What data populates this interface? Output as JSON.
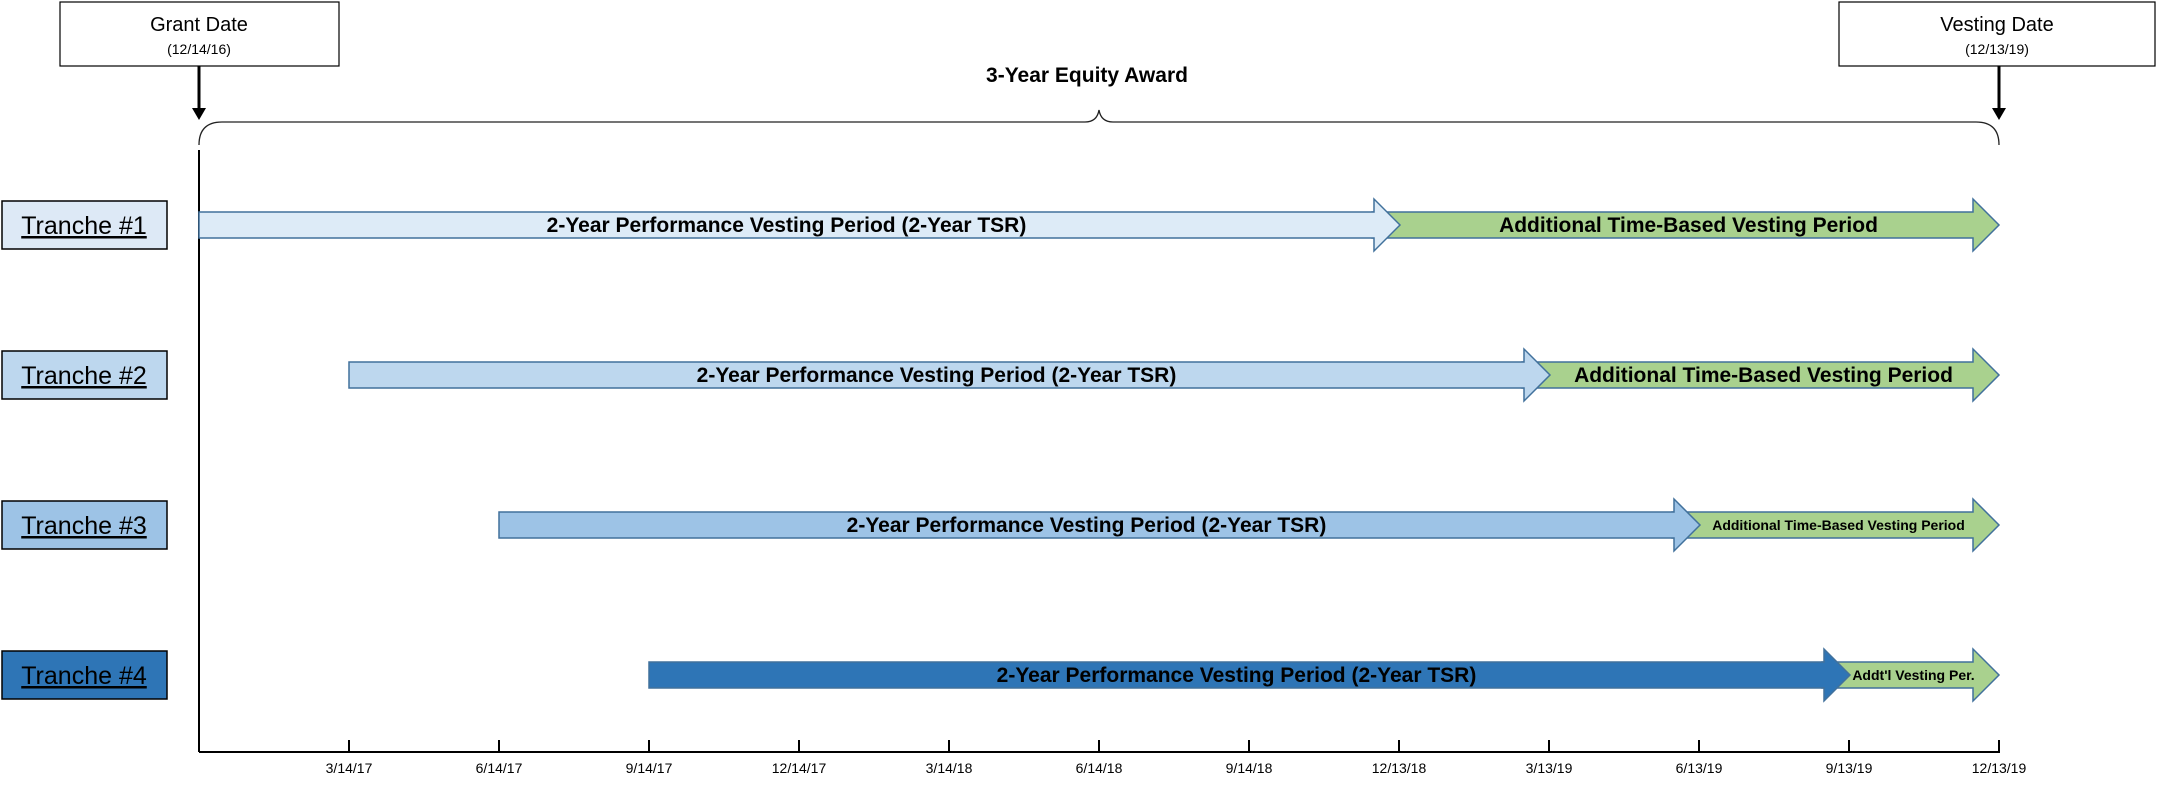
{
  "grant_box": {
    "title": "Grant Date",
    "date": "(12/14/16)"
  },
  "vesting_box": {
    "title": "Vesting Date",
    "date": "(12/13/19)"
  },
  "award_label": "3-Year Equity Award",
  "tranches": [
    {
      "label": "Tranche #1",
      "label_fill": "#dde9f6",
      "perf_text": "2-Year Performance Vesting Period (2-Year TSR)",
      "perf_color": "#ddebf7",
      "time_text": "Additional Time-Based Vesting Period",
      "time_text_size": "large"
    },
    {
      "label": "Tranche #2",
      "label_fill": "#bdd7ee",
      "perf_text": "2-Year Performance Vesting Period (2-Year TSR)",
      "perf_color": "#bdd7ee",
      "time_text": "Additional Time-Based Vesting Period",
      "time_text_size": "large"
    },
    {
      "label": "Tranche #3",
      "label_fill": "#9dc3e6",
      "perf_text": "2-Year Performance Vesting Period (2-Year TSR)",
      "perf_color": "#9dc3e6",
      "time_text": "Additional Time-Based Vesting Period",
      "time_text_size": "small"
    },
    {
      "label": "Tranche #4",
      "label_fill": "#2e75b6",
      "perf_text": "2-Year Performance Vesting Period (2-Year TSR)",
      "perf_color": "#2e75b6",
      "time_text": "Addt'l Vesting Per.",
      "time_text_size": "small"
    }
  ],
  "time_color": "#a9d18e",
  "axis_ticks": [
    "3/14/17",
    "6/14/17",
    "9/14/17",
    "12/14/17",
    "3/14/18",
    "6/14/18",
    "9/14/18",
    "12/13/18",
    "3/13/19",
    "6/13/19",
    "9/13/19",
    "12/13/19"
  ]
}
